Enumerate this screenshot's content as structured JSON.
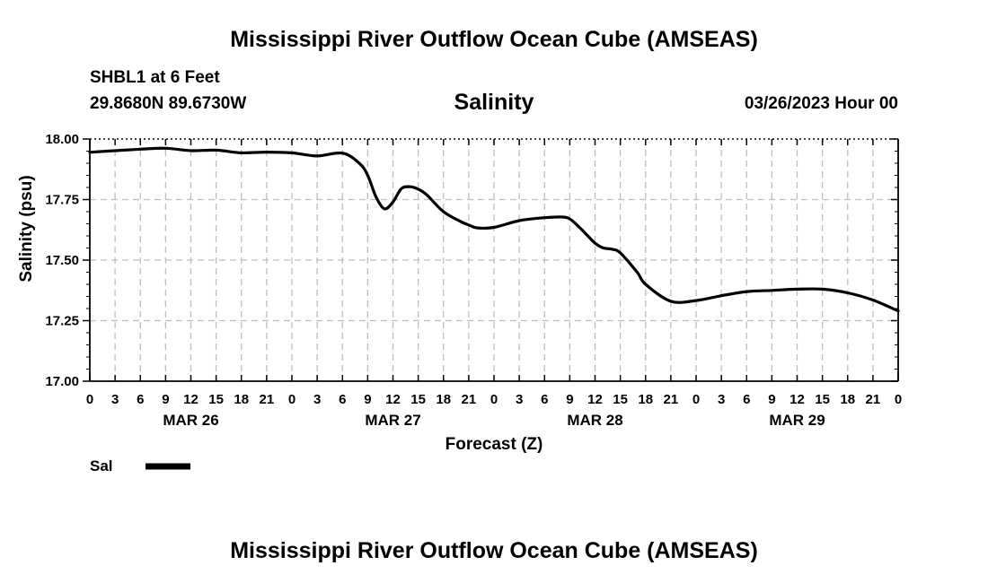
{
  "page": {
    "title": "Mississippi River Outflow Ocean Cube (AMSEAS)",
    "station": "SHBL1 at 6 Feet",
    "coords": "29.8680N  89.6730W",
    "datetime": "03/26/2023 Hour 00",
    "footer_title": "Mississippi River Outflow Ocean Cube (AMSEAS)"
  },
  "chart_data": {
    "type": "line",
    "title": "Salinity",
    "xlabel": "Forecast (Z)",
    "ylabel": "Salinity (psu)",
    "xlim": [
      0,
      96
    ],
    "ylim": [
      17.0,
      18.0
    ],
    "yticks": [
      "17.00",
      "17.25",
      "17.50",
      "17.75",
      "18.00"
    ],
    "ytick_values": [
      17.0,
      17.25,
      17.5,
      17.75,
      18.0
    ],
    "xtick_labels": [
      "0",
      "3",
      "6",
      "9",
      "12",
      "15",
      "18",
      "21",
      "0",
      "3",
      "6",
      "9",
      "12",
      "15",
      "18",
      "21",
      "0",
      "3",
      "6",
      "9",
      "12",
      "15",
      "18",
      "21",
      "0",
      "3",
      "6",
      "9",
      "12",
      "15",
      "18",
      "21",
      "0"
    ],
    "date_labels": [
      "MAR 26",
      "MAR 27",
      "MAR 28",
      "MAR 29"
    ],
    "date_label_hours": [
      12,
      36,
      60,
      84
    ],
    "grid": true,
    "legend": {
      "placement": "bottom-left",
      "entries": [
        "Sal"
      ]
    },
    "series": [
      {
        "name": "Sal",
        "x": [
          0,
          3,
          6,
          9,
          12,
          15,
          18,
          21,
          24,
          27,
          30,
          32,
          33,
          34,
          35,
          36,
          37,
          38,
          39,
          40,
          42,
          44,
          45,
          46,
          48,
          51,
          54,
          56,
          57,
          58,
          59,
          60,
          61,
          62,
          63,
          65,
          66,
          69,
          72,
          75,
          78,
          81,
          84,
          87,
          90,
          93,
          96
        ],
        "values": [
          17.945,
          17.952,
          17.958,
          17.962,
          17.952,
          17.954,
          17.943,
          17.946,
          17.943,
          17.93,
          17.942,
          17.9,
          17.85,
          17.76,
          17.712,
          17.74,
          17.795,
          17.803,
          17.793,
          17.77,
          17.7,
          17.66,
          17.645,
          17.633,
          17.635,
          17.663,
          17.675,
          17.678,
          17.67,
          17.64,
          17.605,
          17.57,
          17.55,
          17.545,
          17.53,
          17.45,
          17.4,
          17.33,
          17.333,
          17.353,
          17.37,
          17.375,
          17.38,
          17.38,
          17.365,
          17.335,
          17.29
        ]
      }
    ]
  }
}
